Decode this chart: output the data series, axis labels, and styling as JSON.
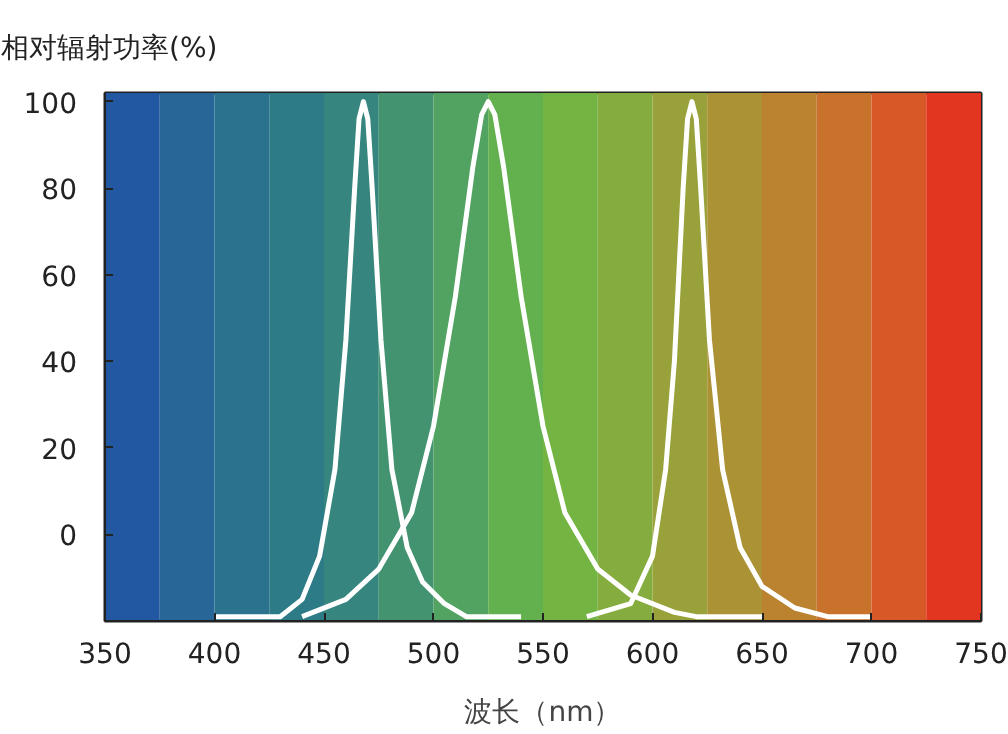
{
  "chart_data": {
    "type": "line",
    "ylabel": "相对辐射功率(%)",
    "xlabel": "波长（nm）",
    "xlim": [
      350,
      750
    ],
    "xticks": [
      350,
      400,
      450,
      500,
      550,
      600,
      650,
      700,
      750
    ],
    "ylim": [
      -20,
      102
    ],
    "yticks": [
      0,
      20,
      40,
      60,
      80,
      100
    ],
    "grid": false,
    "marker": "none",
    "line_style": "solid",
    "series": [
      {
        "color": "#ffffff",
        "x": [
          400,
          430,
          440,
          448,
          455,
          460,
          464,
          466,
          468,
          470,
          472,
          476,
          481,
          488,
          495,
          505,
          515,
          540
        ],
        "values": [
          -19,
          -19,
          -15,
          -5,
          15,
          45,
          80,
          96,
          100,
          96,
          80,
          45,
          15,
          -3,
          -11,
          -16,
          -19,
          -19
        ]
      },
      {
        "color": "#ffffff",
        "x": [
          440,
          460,
          475,
          490,
          500,
          510,
          518,
          522,
          525,
          528,
          532,
          540,
          550,
          560,
          575,
          590,
          610,
          620,
          650
        ],
        "values": [
          -19,
          -15,
          -8,
          5,
          25,
          55,
          85,
          97,
          100,
          97,
          85,
          55,
          25,
          5,
          -8,
          -14,
          -18,
          -19,
          -19
        ]
      },
      {
        "color": "#ffffff",
        "x": [
          570,
          590,
          600,
          606,
          610,
          614,
          616,
          618,
          620,
          622,
          626,
          632,
          640,
          650,
          665,
          680,
          700
        ],
        "values": [
          -19,
          -16,
          -5,
          15,
          40,
          80,
          96,
          100,
          96,
          80,
          45,
          15,
          -3,
          -12,
          -17,
          -19,
          -19
        ]
      }
    ],
    "bands": [
      {
        "axis": "x",
        "from": 350,
        "to": 375,
        "color": "#2257a2"
      },
      {
        "axis": "x",
        "from": 375,
        "to": 400,
        "color": "#276696"
      },
      {
        "axis": "x",
        "from": 400,
        "to": 425,
        "color": "#2b728e"
      },
      {
        "axis": "x",
        "from": 425,
        "to": 450,
        "color": "#2e7b88"
      },
      {
        "axis": "x",
        "from": 450,
        "to": 475,
        "color": "#36867f"
      },
      {
        "axis": "x",
        "from": 475,
        "to": 500,
        "color": "#439371"
      },
      {
        "axis": "x",
        "from": 500,
        "to": 525,
        "color": "#52a261"
      },
      {
        "axis": "x",
        "from": 525,
        "to": 550,
        "color": "#62b14e"
      },
      {
        "axis": "x",
        "from": 550,
        "to": 575,
        "color": "#73b443"
      },
      {
        "axis": "x",
        "from": 575,
        "to": 600,
        "color": "#85ac3e"
      },
      {
        "axis": "x",
        "from": 600,
        "to": 625,
        "color": "#98a13a"
      },
      {
        "axis": "x",
        "from": 625,
        "to": 650,
        "color": "#ab9235"
      },
      {
        "axis": "x",
        "from": 650,
        "to": 675,
        "color": "#bb8230"
      },
      {
        "axis": "x",
        "from": 675,
        "to": 700,
        "color": "#c9722c"
      },
      {
        "axis": "x",
        "from": 700,
        "to": 725,
        "color": "#d65927"
      },
      {
        "axis": "x",
        "from": 725,
        "to": 750,
        "color": "#e23621"
      }
    ]
  }
}
